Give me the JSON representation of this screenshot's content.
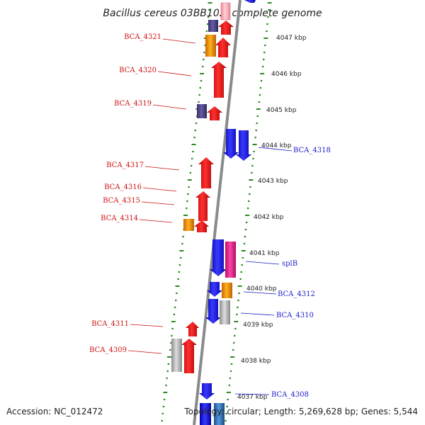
{
  "title": "Bacillus cereus 03BB102, complete genome",
  "footer": {
    "accession": "Accession: NC_012472",
    "topology": "Topology: circular; Length: 5,269,628 bp; Genes: 5,544"
  },
  "colors": {
    "forward": "#ee1c1c",
    "reverse": "#1a1aee",
    "orange": "#ff9900",
    "purple": "#55448a",
    "pink": "#ee3399",
    "gray": "#bbbbbb",
    "steel": "#3377bb",
    "backbone": "#8a8a8a",
    "tick_green": "#2b8a1f",
    "label_red": "#cc1111",
    "label_blue": "#1a1acc"
  },
  "kbp_ticks": [
    {
      "label": "4047 kbp",
      "kbp": 4047
    },
    {
      "label": "4046 kbp",
      "kbp": 4046
    },
    {
      "label": "4045 kbp",
      "kbp": 4045
    },
    {
      "label": "4044 kbp",
      "kbp": 4044
    },
    {
      "label": "4043 kbp",
      "kbp": 4043
    },
    {
      "label": "4042 kbp",
      "kbp": 4042
    },
    {
      "label": "4041 kbp",
      "kbp": 4041
    },
    {
      "label": "4040 kbp",
      "kbp": 4040
    },
    {
      "label": "4039 kbp",
      "kbp": 4039
    },
    {
      "label": "4038 kbp",
      "kbp": 4038
    },
    {
      "label": "4037 kbp",
      "kbp": 4037
    }
  ],
  "gene_labels": [
    {
      "name": "BCA_4321",
      "strand": "forward"
    },
    {
      "name": "BCA_4320",
      "strand": "forward"
    },
    {
      "name": "BCA_4319",
      "strand": "forward"
    },
    {
      "name": "BCA_4318",
      "strand": "reverse"
    },
    {
      "name": "BCA_4317",
      "strand": "forward"
    },
    {
      "name": "BCA_4316",
      "strand": "forward"
    },
    {
      "name": "BCA_4315",
      "strand": "forward"
    },
    {
      "name": "BCA_4314",
      "strand": "forward"
    },
    {
      "name": "splB",
      "strand": "reverse"
    },
    {
      "name": "BCA_4312",
      "strand": "reverse"
    },
    {
      "name": "BCA_4310",
      "strand": "reverse"
    },
    {
      "name": "BCA_4311",
      "strand": "forward"
    },
    {
      "name": "BCA_4309",
      "strand": "forward"
    },
    {
      "name": "BCA_4308",
      "strand": "reverse"
    }
  ]
}
